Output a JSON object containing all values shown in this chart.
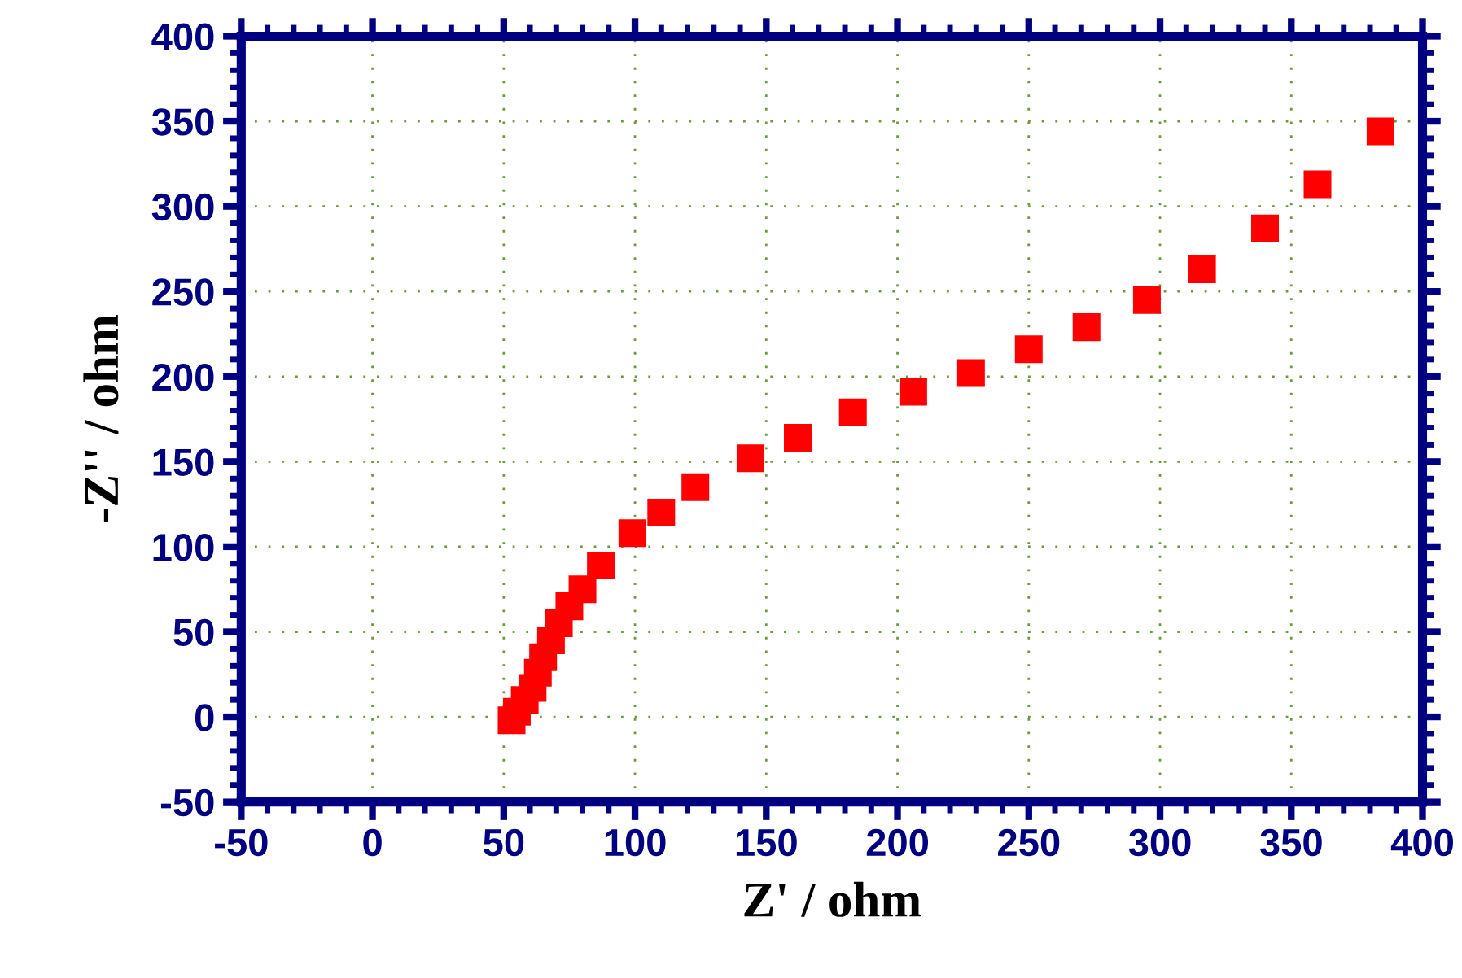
{
  "chart_data": {
    "type": "scatter",
    "xlabel": "Z' / ohm",
    "ylabel": "-Z'' / ohm",
    "xlim": [
      -50,
      400
    ],
    "ylim": [
      -50,
      400
    ],
    "xticks": [
      -50,
      0,
      50,
      100,
      150,
      200,
      250,
      300,
      350,
      400
    ],
    "yticks": [
      -50,
      0,
      50,
      100,
      150,
      200,
      250,
      300,
      350,
      400
    ],
    "grid": true,
    "marker": "square",
    "legend": false,
    "series": [
      {
        "color": "#ff0000",
        "x": [
          53,
          55,
          58,
          61,
          63,
          65,
          68,
          71,
          75,
          80,
          87,
          99,
          110,
          123,
          144,
          162,
          183,
          206,
          228,
          250,
          272,
          295,
          316,
          340,
          360,
          384
        ],
        "values": [
          -2,
          3,
          10,
          17,
          26,
          35,
          45,
          55,
          65,
          75,
          89,
          108,
          120,
          135,
          152,
          164,
          179,
          191,
          202,
          216,
          229,
          245,
          263,
          287,
          313,
          344
        ]
      }
    ]
  }
}
